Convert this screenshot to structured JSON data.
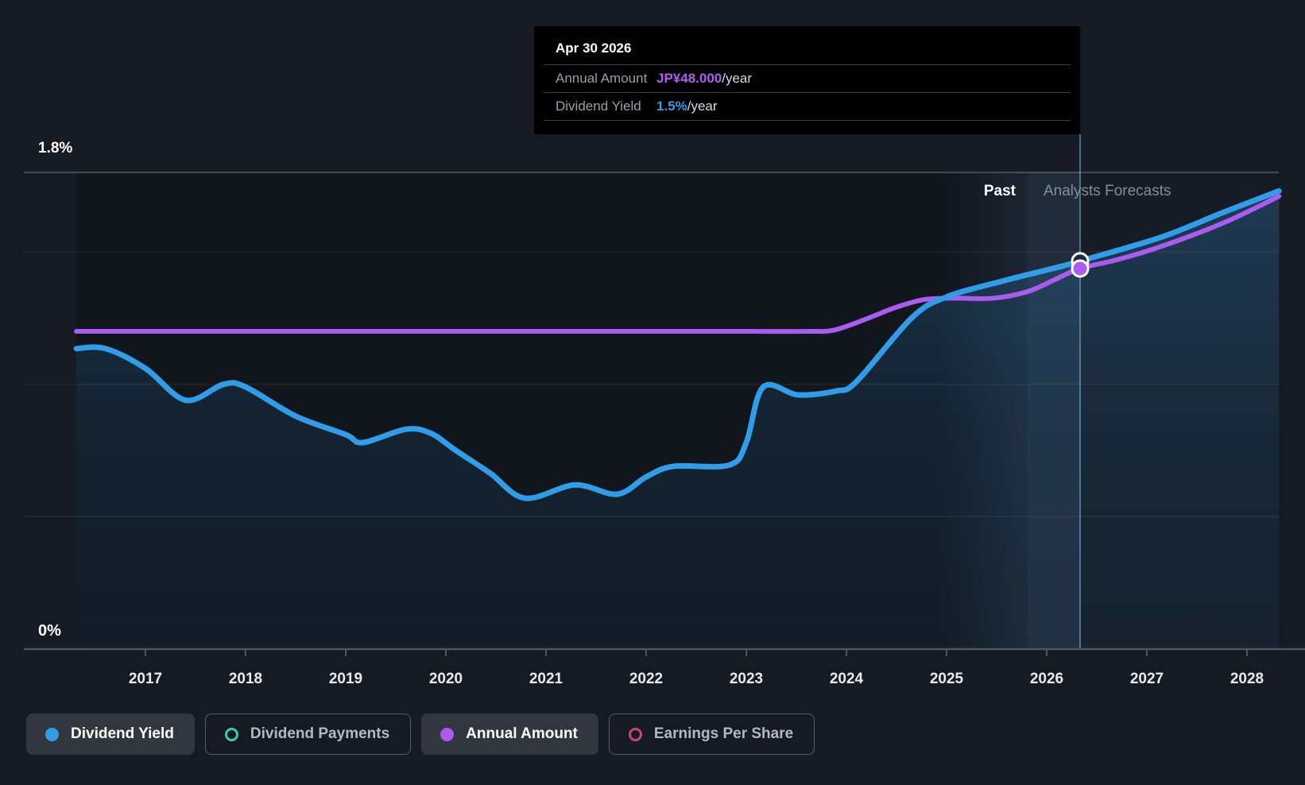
{
  "tooltip": {
    "title": "Apr 30 2026",
    "rows": [
      {
        "label": "Annual Amount",
        "value": "JP¥48.000",
        "suffix": "/year",
        "value_color": "#b25cf2"
      },
      {
        "label": "Dividend Yield",
        "value": "1.5%",
        "suffix": "/year",
        "value_color": "#2f9de8"
      }
    ]
  },
  "axis_labels": {
    "y_top": "1.8%",
    "y_bottom": "0%"
  },
  "zone_labels": {
    "past": "Past",
    "forecast": "Analysts Forecasts"
  },
  "legend": {
    "items": [
      {
        "label": "Dividend Yield",
        "color": "#2f9de8",
        "icon": "filled-dot",
        "active": true
      },
      {
        "label": "Dividend Payments",
        "color": "#3ec9b0",
        "icon": "ring",
        "active": false
      },
      {
        "label": "Annual Amount",
        "color": "#ab5cf0",
        "icon": "filled-dot",
        "active": true
      },
      {
        "label": "Earnings Per Share",
        "color": "#c9447f",
        "icon": "ring",
        "active": false
      }
    ]
  },
  "chart_data": {
    "type": "line",
    "title": "Dividend yield history and forecast",
    "x_ticks": [
      2017,
      2018,
      2019,
      2020,
      2021,
      2022,
      2023,
      2024,
      2025,
      2026,
      2027,
      2028
    ],
    "ylim": [
      0,
      1.8
    ],
    "y_tick_labels_shown": [
      "0%",
      "1.8%"
    ],
    "y_gridlines_pct": [
      0.5,
      1.0,
      1.5
    ],
    "top_boundary_pct": 1.8,
    "grid": true,
    "legend_position": "bottom",
    "divider_year": 2025.81,
    "glow_start_year": 2024.91,
    "hover_year": 2026.33,
    "series": [
      {
        "name": "Dividend Yield",
        "unit": "percent",
        "color": "#2f9de8",
        "width": 7,
        "area": true,
        "points": [
          [
            2016.31,
            1.135
          ],
          [
            2016.6,
            1.135
          ],
          [
            2017.0,
            1.06
          ],
          [
            2017.4,
            0.94
          ],
          [
            2017.78,
            1.0
          ],
          [
            2018.0,
            0.99
          ],
          [
            2018.5,
            0.88
          ],
          [
            2019.0,
            0.81
          ],
          [
            2019.17,
            0.78
          ],
          [
            2019.6,
            0.83
          ],
          [
            2019.85,
            0.815
          ],
          [
            2020.1,
            0.75
          ],
          [
            2020.44,
            0.665
          ],
          [
            2020.79,
            0.57
          ],
          [
            2021.29,
            0.62
          ],
          [
            2021.71,
            0.585
          ],
          [
            2022.0,
            0.65
          ],
          [
            2022.27,
            0.69
          ],
          [
            2022.83,
            0.695
          ],
          [
            2023.0,
            0.78
          ],
          [
            2023.17,
            0.99
          ],
          [
            2023.52,
            0.96
          ],
          [
            2023.9,
            0.975
          ],
          [
            2024.1,
            1.01
          ],
          [
            2024.65,
            1.25
          ],
          [
            2025.0,
            1.33
          ],
          [
            2025.56,
            1.39
          ],
          [
            2026.09,
            1.44
          ],
          [
            2026.33,
            1.465
          ],
          [
            2027.14,
            1.555
          ],
          [
            2027.77,
            1.65
          ],
          [
            2028.32,
            1.73
          ]
        ]
      },
      {
        "name": "Annual Amount",
        "unit": "percent-axis-equivalent (JPY value axis hidden; Apr 30 2026 = JP¥48.000/year)",
        "color": "#ab5cf0",
        "width": 6,
        "area": false,
        "points": [
          [
            2016.31,
            1.2
          ],
          [
            2017.0,
            1.2
          ],
          [
            2018.0,
            1.2
          ],
          [
            2019.0,
            1.2
          ],
          [
            2020.0,
            1.2
          ],
          [
            2021.0,
            1.2
          ],
          [
            2022.0,
            1.2
          ],
          [
            2023.0,
            1.2
          ],
          [
            2023.6,
            1.2
          ],
          [
            2023.88,
            1.205
          ],
          [
            2024.22,
            1.25
          ],
          [
            2024.49,
            1.29
          ],
          [
            2024.78,
            1.32
          ],
          [
            2025.1,
            1.325
          ],
          [
            2025.47,
            1.325
          ],
          [
            2025.81,
            1.35
          ],
          [
            2026.08,
            1.395
          ],
          [
            2026.33,
            1.437
          ],
          [
            2026.7,
            1.47
          ],
          [
            2027.14,
            1.52
          ],
          [
            2027.77,
            1.61
          ],
          [
            2028.32,
            1.71
          ]
        ]
      }
    ],
    "markers": [
      {
        "series": "Dividend Yield",
        "x": 2026.33,
        "y": 1.465,
        "fill": "#1b2b3c",
        "stroke": "#ffffff"
      },
      {
        "series": "Annual Amount",
        "x": 2026.33,
        "y": 1.437,
        "fill": "#ab5cf0",
        "stroke": "#ffffff"
      }
    ],
    "colors": {
      "page_bg": "#161b23",
      "plot_bg": "#11151c",
      "gridline": "rgba(255,255,255,0.07)",
      "top_line": "rgba(255,255,255,0.28)",
      "axis_line": "#50555c",
      "tick_label": "#e8eaed",
      "area_fill_top": "rgba(47,128,190,0.30)",
      "area_fill_bottom": "rgba(47,128,190,0.06)",
      "forecast_tint": "rgba(120,170,220,0.05)",
      "hover_band": "rgba(130,185,240,0.10)",
      "tracking_line": "rgba(125,190,235,0.5)"
    }
  }
}
